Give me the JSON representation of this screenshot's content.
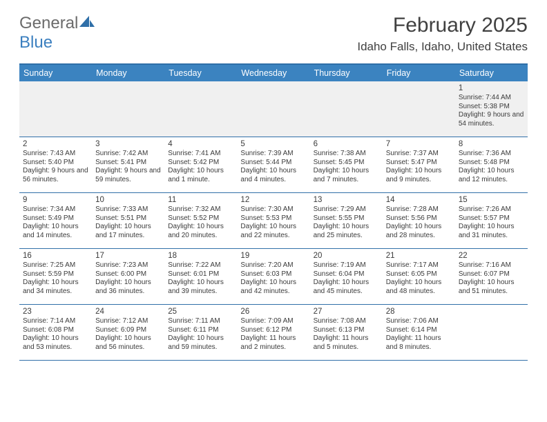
{
  "logo": {
    "text1": "General",
    "text2": "Blue"
  },
  "header": {
    "title": "February 2025",
    "location": "Idaho Falls, Idaho, United States"
  },
  "weekdays": [
    "Sunday",
    "Monday",
    "Tuesday",
    "Wednesday",
    "Thursday",
    "Friday",
    "Saturday"
  ],
  "colors": {
    "header_bg": "#3b83c0",
    "border": "#2f6fa8",
    "text": "#3a3a3a",
    "alt_row_bg": "#f0f0f0"
  },
  "weeks": [
    [
      {
        "day": "",
        "lines": []
      },
      {
        "day": "",
        "lines": []
      },
      {
        "day": "",
        "lines": []
      },
      {
        "day": "",
        "lines": []
      },
      {
        "day": "",
        "lines": []
      },
      {
        "day": "",
        "lines": []
      },
      {
        "day": "1",
        "lines": [
          "Sunrise: 7:44 AM",
          "Sunset: 5:38 PM",
          "Daylight: 9 hours and 54 minutes."
        ]
      }
    ],
    [
      {
        "day": "2",
        "lines": [
          "Sunrise: 7:43 AM",
          "Sunset: 5:40 PM",
          "Daylight: 9 hours and 56 minutes."
        ]
      },
      {
        "day": "3",
        "lines": [
          "Sunrise: 7:42 AM",
          "Sunset: 5:41 PM",
          "Daylight: 9 hours and 59 minutes."
        ]
      },
      {
        "day": "4",
        "lines": [
          "Sunrise: 7:41 AM",
          "Sunset: 5:42 PM",
          "Daylight: 10 hours and 1 minute."
        ]
      },
      {
        "day": "5",
        "lines": [
          "Sunrise: 7:39 AM",
          "Sunset: 5:44 PM",
          "Daylight: 10 hours and 4 minutes."
        ]
      },
      {
        "day": "6",
        "lines": [
          "Sunrise: 7:38 AM",
          "Sunset: 5:45 PM",
          "Daylight: 10 hours and 7 minutes."
        ]
      },
      {
        "day": "7",
        "lines": [
          "Sunrise: 7:37 AM",
          "Sunset: 5:47 PM",
          "Daylight: 10 hours and 9 minutes."
        ]
      },
      {
        "day": "8",
        "lines": [
          "Sunrise: 7:36 AM",
          "Sunset: 5:48 PM",
          "Daylight: 10 hours and 12 minutes."
        ]
      }
    ],
    [
      {
        "day": "9",
        "lines": [
          "Sunrise: 7:34 AM",
          "Sunset: 5:49 PM",
          "Daylight: 10 hours and 14 minutes."
        ]
      },
      {
        "day": "10",
        "lines": [
          "Sunrise: 7:33 AM",
          "Sunset: 5:51 PM",
          "Daylight: 10 hours and 17 minutes."
        ]
      },
      {
        "day": "11",
        "lines": [
          "Sunrise: 7:32 AM",
          "Sunset: 5:52 PM",
          "Daylight: 10 hours and 20 minutes."
        ]
      },
      {
        "day": "12",
        "lines": [
          "Sunrise: 7:30 AM",
          "Sunset: 5:53 PM",
          "Daylight: 10 hours and 22 minutes."
        ]
      },
      {
        "day": "13",
        "lines": [
          "Sunrise: 7:29 AM",
          "Sunset: 5:55 PM",
          "Daylight: 10 hours and 25 minutes."
        ]
      },
      {
        "day": "14",
        "lines": [
          "Sunrise: 7:28 AM",
          "Sunset: 5:56 PM",
          "Daylight: 10 hours and 28 minutes."
        ]
      },
      {
        "day": "15",
        "lines": [
          "Sunrise: 7:26 AM",
          "Sunset: 5:57 PM",
          "Daylight: 10 hours and 31 minutes."
        ]
      }
    ],
    [
      {
        "day": "16",
        "lines": [
          "Sunrise: 7:25 AM",
          "Sunset: 5:59 PM",
          "Daylight: 10 hours and 34 minutes."
        ]
      },
      {
        "day": "17",
        "lines": [
          "Sunrise: 7:23 AM",
          "Sunset: 6:00 PM",
          "Daylight: 10 hours and 36 minutes."
        ]
      },
      {
        "day": "18",
        "lines": [
          "Sunrise: 7:22 AM",
          "Sunset: 6:01 PM",
          "Daylight: 10 hours and 39 minutes."
        ]
      },
      {
        "day": "19",
        "lines": [
          "Sunrise: 7:20 AM",
          "Sunset: 6:03 PM",
          "Daylight: 10 hours and 42 minutes."
        ]
      },
      {
        "day": "20",
        "lines": [
          "Sunrise: 7:19 AM",
          "Sunset: 6:04 PM",
          "Daylight: 10 hours and 45 minutes."
        ]
      },
      {
        "day": "21",
        "lines": [
          "Sunrise: 7:17 AM",
          "Sunset: 6:05 PM",
          "Daylight: 10 hours and 48 minutes."
        ]
      },
      {
        "day": "22",
        "lines": [
          "Sunrise: 7:16 AM",
          "Sunset: 6:07 PM",
          "Daylight: 10 hours and 51 minutes."
        ]
      }
    ],
    [
      {
        "day": "23",
        "lines": [
          "Sunrise: 7:14 AM",
          "Sunset: 6:08 PM",
          "Daylight: 10 hours and 53 minutes."
        ]
      },
      {
        "day": "24",
        "lines": [
          "Sunrise: 7:12 AM",
          "Sunset: 6:09 PM",
          "Daylight: 10 hours and 56 minutes."
        ]
      },
      {
        "day": "25",
        "lines": [
          "Sunrise: 7:11 AM",
          "Sunset: 6:11 PM",
          "Daylight: 10 hours and 59 minutes."
        ]
      },
      {
        "day": "26",
        "lines": [
          "Sunrise: 7:09 AM",
          "Sunset: 6:12 PM",
          "Daylight: 11 hours and 2 minutes."
        ]
      },
      {
        "day": "27",
        "lines": [
          "Sunrise: 7:08 AM",
          "Sunset: 6:13 PM",
          "Daylight: 11 hours and 5 minutes."
        ]
      },
      {
        "day": "28",
        "lines": [
          "Sunrise: 7:06 AM",
          "Sunset: 6:14 PM",
          "Daylight: 11 hours and 8 minutes."
        ]
      },
      {
        "day": "",
        "lines": []
      }
    ]
  ]
}
